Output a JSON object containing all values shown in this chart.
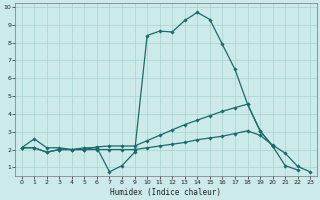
{
  "xlabel": "Humidex (Indice chaleur)",
  "background_color": "#cceaea",
  "grid_color": "#aacfcf",
  "line_color": "#1a6b6b",
  "line1_x": [
    0,
    1,
    2,
    3,
    4,
    5,
    6,
    7,
    8,
    9,
    10,
    11,
    12,
    13,
    14,
    15,
    16,
    17,
    18,
    19,
    20,
    21,
    22,
    23
  ],
  "line1_y": [
    2.1,
    2.6,
    2.1,
    2.1,
    2.0,
    2.1,
    2.1,
    0.75,
    1.1,
    1.85,
    8.4,
    8.65,
    8.6,
    9.25,
    9.7,
    9.3,
    7.9,
    6.5,
    4.55,
    3.05,
    2.2,
    1.1,
    0.85,
    null
  ],
  "line2_x": [
    0,
    1,
    2,
    3,
    4,
    5,
    6,
    7,
    8,
    9,
    10,
    11,
    12,
    13,
    14,
    15,
    16,
    17,
    18,
    19,
    20
  ],
  "line2_y": [
    2.1,
    2.1,
    1.85,
    2.0,
    2.0,
    2.0,
    2.15,
    2.2,
    2.2,
    2.2,
    2.5,
    2.8,
    3.1,
    3.4,
    3.65,
    3.9,
    4.15,
    4.35,
    4.55,
    3.05,
    2.2
  ],
  "line3_x": [
    0,
    1,
    2,
    3,
    4,
    5,
    6,
    7,
    8,
    9,
    10,
    11,
    12,
    13,
    14,
    15,
    16,
    17,
    18,
    19,
    20,
    21,
    22,
    23
  ],
  "line3_y": [
    2.1,
    2.1,
    1.85,
    2.0,
    2.0,
    2.0,
    2.0,
    2.0,
    2.0,
    2.0,
    2.1,
    2.2,
    2.3,
    2.4,
    2.55,
    2.65,
    2.75,
    2.9,
    3.05,
    2.8,
    2.25,
    1.8,
    1.05,
    0.75
  ],
  "ylim": [
    0.5,
    10.2
  ],
  "xlim": [
    -0.5,
    23.5
  ],
  "yticks": [
    1,
    2,
    3,
    4,
    5,
    6,
    7,
    8,
    9,
    10
  ]
}
